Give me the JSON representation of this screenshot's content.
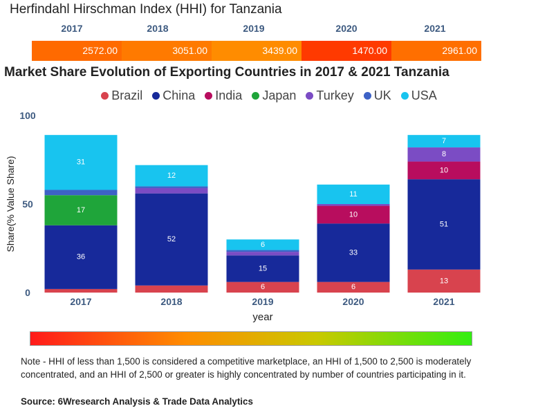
{
  "hhi": {
    "title": "Herfindahl Hirschman Index (HHI) for Tanzania",
    "years": [
      "2017",
      "2018",
      "2019",
      "2020",
      "2021"
    ],
    "values": [
      "2572.00",
      "3051.00",
      "3439.00",
      "1470.00",
      "2961.00"
    ],
    "colors": [
      "#ff6a00",
      "#ff7a00",
      "#ff8c00",
      "#ff3a00",
      "#ff6f00"
    ]
  },
  "chart_data": {
    "type": "bar",
    "stacked": true,
    "title": "Market Share Evolution of Exporting Countries in 2017 & 2021 Tanzania",
    "xlabel": "year",
    "ylabel": "Share(% Value Share)",
    "ylim": [
      0,
      100
    ],
    "yticks": [
      "0",
      "50",
      "100"
    ],
    "categories": [
      "2017",
      "2018",
      "2019",
      "2020",
      "2021"
    ],
    "series": [
      {
        "name": "Brazil",
        "color": "#d8434e",
        "values": [
          2,
          4,
          6,
          6,
          13
        ],
        "labels": [
          "",
          "",
          "6",
          "6",
          "13"
        ]
      },
      {
        "name": "China",
        "color": "#17299a",
        "values": [
          36,
          52,
          15,
          33,
          51
        ],
        "labels": [
          "36",
          "52",
          "15",
          "33",
          "51"
        ]
      },
      {
        "name": "India",
        "color": "#b80d5e",
        "values": [
          0,
          0,
          0,
          10,
          10
        ],
        "labels": [
          "",
          "",
          "",
          "10",
          "10"
        ]
      },
      {
        "name": "Japan",
        "color": "#1fa53a",
        "values": [
          17,
          0,
          0,
          0,
          0
        ],
        "labels": [
          "17",
          "",
          "",
          "",
          ""
        ]
      },
      {
        "name": "Turkey",
        "color": "#7b4cc4",
        "values": [
          0,
          3,
          2,
          1,
          8
        ],
        "labels": [
          "",
          "",
          "",
          "",
          "8"
        ]
      },
      {
        "name": "UK",
        "color": "#3d62c6",
        "values": [
          3,
          1,
          1,
          0,
          0
        ],
        "labels": [
          "",
          "",
          "",
          "",
          ""
        ]
      },
      {
        "name": "USA",
        "color": "#18c4ef",
        "values": [
          31,
          12,
          6,
          11,
          7
        ],
        "labels": [
          "31",
          "12",
          "6",
          "11",
          "7"
        ]
      }
    ]
  },
  "note": "Note - HHI of less than 1,500 is considered a competitive marketplace, an HHI of 1,500 to 2,500 is moderately concentrated, and an HHI of 2,500 or greater is highly concentrated by number of countries participating in it.",
  "source": "Source: 6Wresearch Analysis & Trade Data Analytics"
}
